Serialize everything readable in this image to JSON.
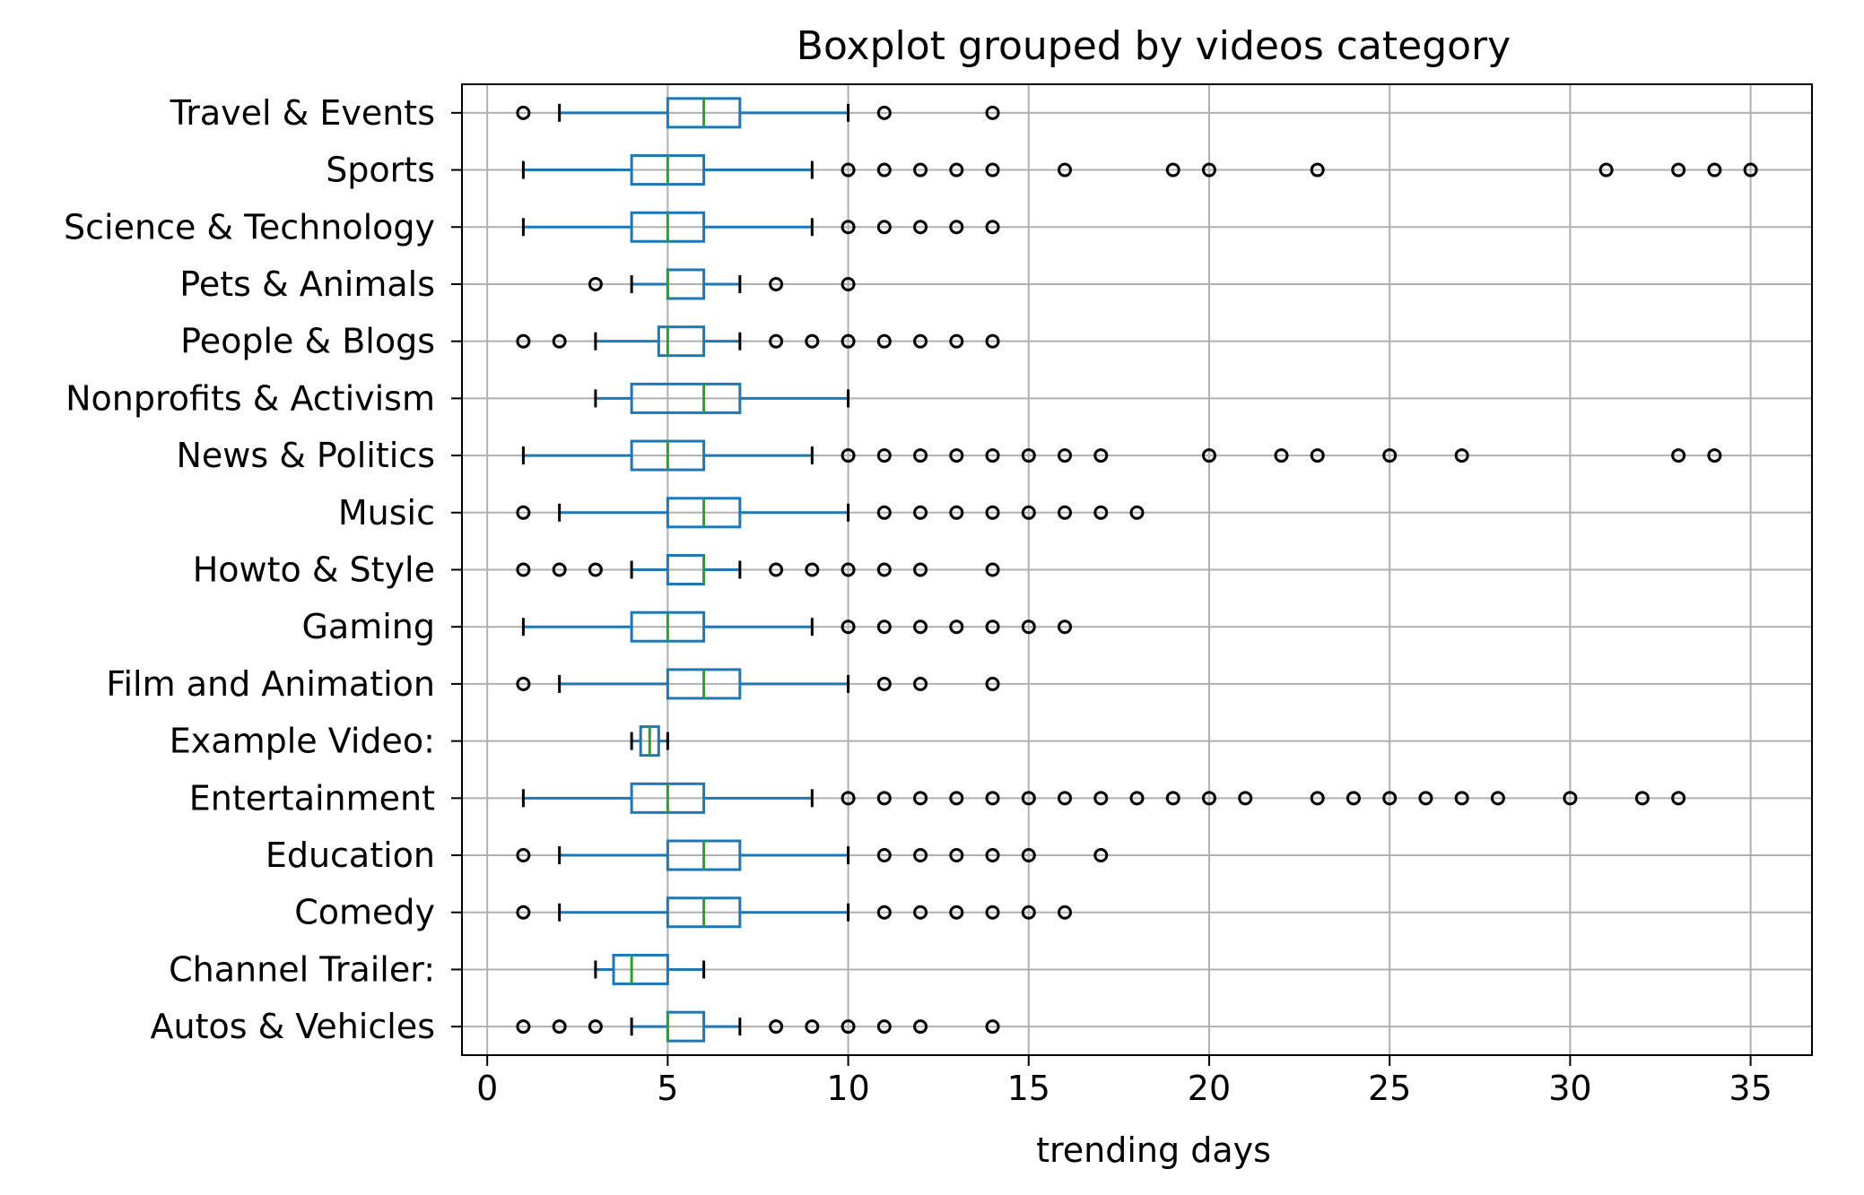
{
  "chart_data": {
    "type": "boxplot",
    "title": "Boxplot grouped by videos category",
    "xlabel": "trending days",
    "ylabel": "",
    "xlim": [
      -0.7,
      36.7
    ],
    "xticks": [
      0,
      5,
      10,
      15,
      20,
      25,
      30,
      35
    ],
    "grid": true,
    "orientation": "horizontal",
    "colors": {
      "box": "#1f77b4",
      "median": "#2ca02c",
      "outlier": "#000000",
      "grid": "#b0b0b0"
    },
    "categories": [
      {
        "name": "Autos & Vehicles",
        "whisker_low": 4,
        "q1": 5,
        "median": 5,
        "q3": 6,
        "whisker_high": 7,
        "outliers": [
          1,
          2,
          3,
          8,
          9,
          10,
          11,
          12,
          14
        ]
      },
      {
        "name": "Channel Trailer:",
        "whisker_low": 3,
        "q1": 3.5,
        "median": 4,
        "q3": 5,
        "whisker_high": 6,
        "outliers": []
      },
      {
        "name": "Comedy",
        "whisker_low": 2,
        "q1": 5,
        "median": 6,
        "q3": 7,
        "whisker_high": 10,
        "outliers": [
          1,
          11,
          12,
          13,
          14,
          15,
          16
        ]
      },
      {
        "name": "Education",
        "whisker_low": 2,
        "q1": 5,
        "median": 6,
        "q3": 7,
        "whisker_high": 10,
        "outliers": [
          1,
          11,
          12,
          13,
          14,
          15,
          17
        ]
      },
      {
        "name": "Entertainment",
        "whisker_low": 1,
        "q1": 4,
        "median": 5,
        "q3": 6,
        "whisker_high": 9,
        "outliers": [
          10,
          11,
          12,
          13,
          14,
          15,
          16,
          17,
          18,
          19,
          20,
          21,
          23,
          24,
          25,
          26,
          27,
          28,
          30,
          32,
          33
        ]
      },
      {
        "name": "Example Video:",
        "whisker_low": 4,
        "q1": 4.25,
        "median": 4.5,
        "q3": 4.75,
        "whisker_high": 5,
        "outliers": []
      },
      {
        "name": "Film and Animation",
        "whisker_low": 2,
        "q1": 5,
        "median": 6,
        "q3": 7,
        "whisker_high": 10,
        "outliers": [
          1,
          11,
          12,
          14
        ]
      },
      {
        "name": "Gaming",
        "whisker_low": 1,
        "q1": 4,
        "median": 5,
        "q3": 6,
        "whisker_high": 9,
        "outliers": [
          10,
          11,
          12,
          13,
          14,
          15,
          16
        ]
      },
      {
        "name": "Howto & Style",
        "whisker_low": 4,
        "q1": 5,
        "median": 6,
        "q3": 6,
        "whisker_high": 7,
        "outliers": [
          1,
          2,
          3,
          8,
          9,
          10,
          11,
          12,
          14
        ]
      },
      {
        "name": "Music",
        "whisker_low": 2,
        "q1": 5,
        "median": 6,
        "q3": 7,
        "whisker_high": 10,
        "outliers": [
          1,
          11,
          12,
          13,
          14,
          15,
          16,
          17,
          18
        ]
      },
      {
        "name": "News & Politics",
        "whisker_low": 1,
        "q1": 4,
        "median": 5,
        "q3": 6,
        "whisker_high": 9,
        "outliers": [
          10,
          11,
          12,
          13,
          14,
          15,
          16,
          17,
          20,
          22,
          23,
          25,
          27,
          33,
          34
        ]
      },
      {
        "name": "Nonprofits & Activism",
        "whisker_low": 3,
        "q1": 4,
        "median": 6,
        "q3": 7,
        "whisker_high": 10,
        "outliers": []
      },
      {
        "name": "People & Blogs",
        "whisker_low": 3,
        "q1": 4.75,
        "median": 5,
        "q3": 6,
        "whisker_high": 7,
        "outliers": [
          1,
          2,
          8,
          9,
          10,
          11,
          12,
          13,
          14
        ]
      },
      {
        "name": "Pets & Animals",
        "whisker_low": 4,
        "q1": 5,
        "median": 5,
        "q3": 6,
        "whisker_high": 7,
        "outliers": [
          3,
          8,
          10
        ]
      },
      {
        "name": "Science & Technology",
        "whisker_low": 1,
        "q1": 4,
        "median": 5,
        "q3": 6,
        "whisker_high": 9,
        "outliers": [
          10,
          11,
          12,
          13,
          14
        ]
      },
      {
        "name": "Sports",
        "whisker_low": 1,
        "q1": 4,
        "median": 5,
        "q3": 6,
        "whisker_high": 9,
        "outliers": [
          10,
          11,
          12,
          13,
          14,
          16,
          19,
          20,
          23,
          31,
          33,
          34,
          35
        ]
      },
      {
        "name": "Travel & Events",
        "whisker_low": 2,
        "q1": 5,
        "median": 6,
        "q3": 7,
        "whisker_high": 10,
        "outliers": [
          1,
          11,
          14
        ]
      }
    ]
  }
}
